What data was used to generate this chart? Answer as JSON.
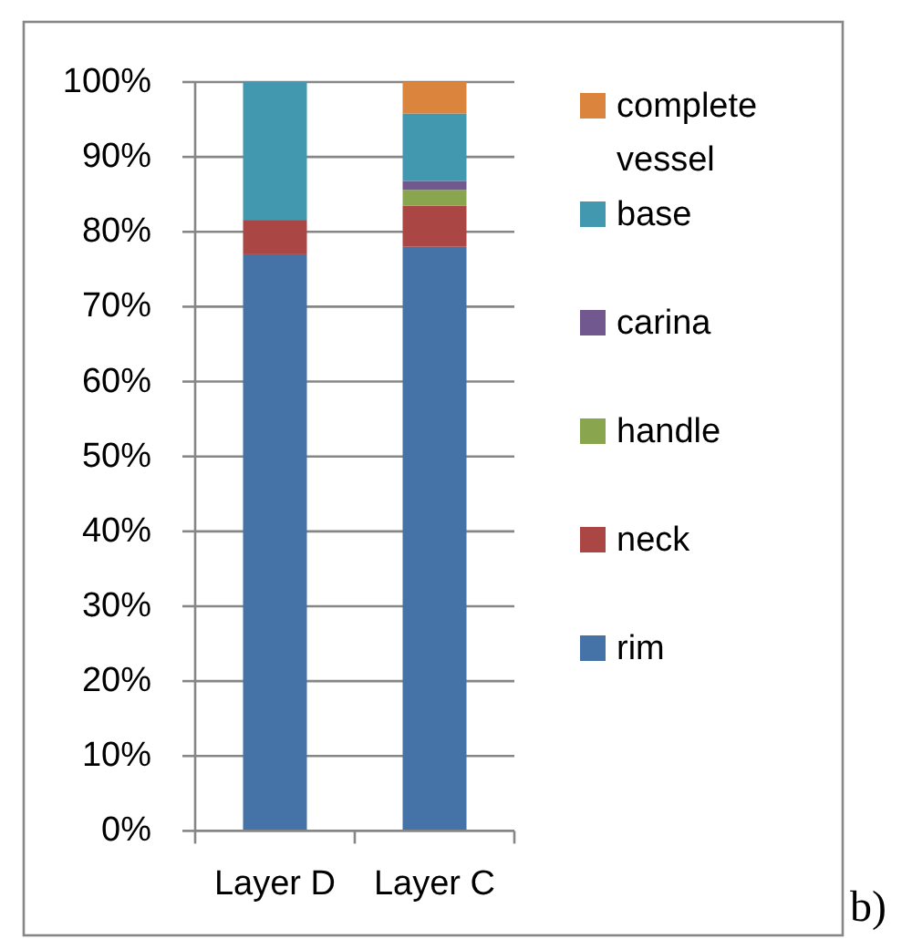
{
  "chart_data": {
    "type": "bar",
    "stacked": true,
    "categories": [
      "Layer D",
      "Layer C"
    ],
    "series": [
      {
        "name": "rim",
        "color": "#4572a7",
        "values": [
          77,
          78
        ]
      },
      {
        "name": "neck",
        "color": "#aa4643",
        "values": [
          4.6,
          5.5
        ]
      },
      {
        "name": "handle",
        "color": "#89a54e",
        "values": [
          0,
          2.1
        ]
      },
      {
        "name": "carina",
        "color": "#71588f",
        "values": [
          0,
          1.2
        ]
      },
      {
        "name": "base",
        "color": "#4198af",
        "values": [
          18.4,
          9
        ]
      },
      {
        "name": "complete vessel",
        "color": "#db843d",
        "values": [
          0,
          4.2
        ]
      }
    ],
    "ylim": [
      0,
      100
    ],
    "yticks": [
      {
        "value": 0,
        "label": "0%"
      },
      {
        "value": 10,
        "label": "10%"
      },
      {
        "value": 20,
        "label": "20%"
      },
      {
        "value": 30,
        "label": "30%"
      },
      {
        "value": 40,
        "label": "40%"
      },
      {
        "value": 50,
        "label": "50%"
      },
      {
        "value": 60,
        "label": "60%"
      },
      {
        "value": 70,
        "label": "70%"
      },
      {
        "value": 80,
        "label": "80%"
      },
      {
        "value": 90,
        "label": "90%"
      },
      {
        "value": 100,
        "label": "100%"
      }
    ],
    "grid": "y",
    "legend": "right",
    "annotations": [
      "b)"
    ]
  }
}
